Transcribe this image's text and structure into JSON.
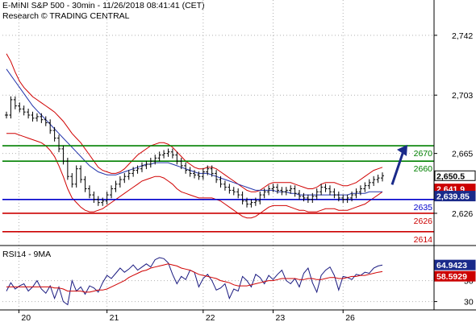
{
  "header": {
    "title": "E-MINI S&P 500 - 30min - 11/26/2018 08:41:41 (CET)",
    "subtitle": "Research © TRADING CENTRAL"
  },
  "rsi_panel": {
    "title": "RSI14 - 9MA"
  },
  "colors": {
    "price": "#000000",
    "bollinger": "#d00000",
    "moving_average": "#2233aa",
    "resistance": "#008000",
    "pivot": "#0000cc",
    "support": "#cc0000",
    "rsi": "#1a1a80",
    "rsi_ma": "#d00000",
    "last_price_box": "#ffffff",
    "lower_band_box": "#cc0000",
    "ma_box": "#1a2a8a",
    "arrow": "#1a2a8a"
  },
  "chart_data": [
    {
      "type": "line",
      "instrument": "E-MINI S&P 500",
      "timeframe": "30min",
      "x_tick_labels": [
        "20",
        "21",
        "22",
        "23",
        "26"
      ],
      "y_tick_labels": [
        "2,742",
        "2,703",
        "2,665",
        "2,626"
      ],
      "ylim": [
        2605,
        2765
      ],
      "grid": true,
      "price_series": [
        2690,
        2700,
        2696,
        2694,
        2692,
        2690,
        2688,
        2689,
        2687,
        2685,
        2680,
        2675,
        2668,
        2660,
        2650,
        2645,
        2655,
        2648,
        2642,
        2638,
        2635,
        2633,
        2634,
        2638,
        2642,
        2645,
        2648,
        2650,
        2652,
        2654,
        2655,
        2657,
        2658,
        2660,
        2662,
        2664,
        2665,
        2666,
        2664,
        2660,
        2657,
        2654,
        2652,
        2651,
        2650,
        2653,
        2655,
        2652,
        2648,
        2645,
        2643,
        2641,
        2640,
        2638,
        2634,
        2632,
        2633,
        2634,
        2638,
        2640,
        2642,
        2643,
        2641,
        2640,
        2641,
        2642,
        2639,
        2637,
        2636,
        2635,
        2637,
        2640,
        2643,
        2642,
        2640,
        2638,
        2636,
        2635,
        2636,
        2638,
        2640,
        2642,
        2644,
        2646,
        2648,
        2649,
        2650.5
      ],
      "series": [
        {
          "name": "Bollinger upper",
          "values": [
            2730,
            2725,
            2718,
            2712,
            2708,
            2705,
            2702,
            2700,
            2698,
            2696,
            2694,
            2692,
            2689,
            2686,
            2682,
            2678,
            2675,
            2672,
            2668,
            2664,
            2660,
            2656,
            2654,
            2653,
            2652,
            2652,
            2653,
            2655,
            2658,
            2661,
            2664,
            2666,
            2668,
            2670,
            2671,
            2672,
            2672,
            2671,
            2669,
            2666,
            2663,
            2660,
            2658,
            2656,
            2655,
            2655,
            2656,
            2656,
            2655,
            2653,
            2651,
            2649,
            2647,
            2645,
            2643,
            2641,
            2640,
            2640,
            2641,
            2643,
            2645,
            2646,
            2646,
            2646,
            2646,
            2646,
            2645,
            2644,
            2643,
            2642,
            2642,
            2643,
            2645,
            2646,
            2646,
            2646,
            2645,
            2644,
            2644,
            2645,
            2646,
            2648,
            2650,
            2652,
            2654,
            2655,
            2656
          ]
        },
        {
          "name": "Bollinger lower",
          "values": [
            2678,
            2678,
            2678,
            2677,
            2676,
            2675,
            2674,
            2673,
            2672,
            2670,
            2667,
            2663,
            2657,
            2650,
            2642,
            2636,
            2633,
            2630,
            2628,
            2627,
            2627,
            2628,
            2629,
            2631,
            2633,
            2635,
            2637,
            2639,
            2641,
            2643,
            2645,
            2647,
            2648,
            2649,
            2650,
            2650,
            2649,
            2647,
            2645,
            2642,
            2640,
            2639,
            2638,
            2637,
            2636,
            2636,
            2636,
            2636,
            2635,
            2634,
            2632,
            2630,
            2628,
            2626,
            2624,
            2623,
            2623,
            2624,
            2626,
            2628,
            2630,
            2631,
            2631,
            2631,
            2631,
            2630,
            2629,
            2628,
            2628,
            2627,
            2627,
            2627,
            2628,
            2629,
            2629,
            2629,
            2628,
            2628,
            2628,
            2629,
            2630,
            2631,
            2632,
            2634,
            2636,
            2638,
            2640
          ]
        },
        {
          "name": "Moving average",
          "values": [
            2720,
            2716,
            2712,
            2708,
            2704,
            2700,
            2696,
            2693,
            2690,
            2687,
            2684,
            2681,
            2678,
            2675,
            2672,
            2669,
            2666,
            2663,
            2660,
            2657,
            2655,
            2653,
            2652,
            2651,
            2651,
            2651,
            2652,
            2653,
            2654,
            2655,
            2656,
            2657,
            2658,
            2658,
            2659,
            2659,
            2659,
            2659,
            2658,
            2657,
            2656,
            2655,
            2654,
            2653,
            2652,
            2652,
            2652,
            2651,
            2650,
            2649,
            2648,
            2647,
            2646,
            2645,
            2644,
            2643,
            2642,
            2641,
            2641,
            2641,
            2641,
            2641,
            2640,
            2640,
            2640,
            2639,
            2639,
            2638,
            2638,
            2638,
            2638,
            2638,
            2638,
            2638,
            2638,
            2638,
            2638,
            2638,
            2638,
            2639,
            2639,
            2639,
            2639,
            2640,
            2640,
            2640,
            2640
          ]
        }
      ],
      "horizontal_levels": [
        {
          "value": 2670,
          "label": "2670",
          "kind": "resistance"
        },
        {
          "value": 2660,
          "label": "2660",
          "kind": "resistance"
        },
        {
          "value": 2635,
          "label": "2635",
          "kind": "pivot"
        },
        {
          "value": 2626,
          "label": "2626",
          "kind": "support"
        },
        {
          "value": 2614,
          "label": "2614",
          "kind": "support"
        }
      ],
      "price_boxes": [
        {
          "value": 2650.5,
          "label": "2,650.5",
          "kind": "last"
        },
        {
          "value": 2641.9,
          "label": "2,641.9",
          "kind": "lower"
        },
        {
          "value": 2639.85,
          "label": "2,639.85",
          "kind": "ma"
        }
      ],
      "arrow": {
        "from_value": 2652,
        "to_value": 2668,
        "direction": "up"
      }
    },
    {
      "type": "line",
      "title": "RSI14 - 9MA",
      "y_tick_labels": [
        "50",
        "30"
      ],
      "ylim": [
        22,
        82
      ],
      "grid": true,
      "series": [
        {
          "name": "RSI14",
          "values": [
            40,
            48,
            42,
            45,
            47,
            40,
            44,
            50,
            42,
            38,
            45,
            33,
            44,
            30,
            27,
            50,
            40,
            44,
            37,
            45,
            43,
            39,
            48,
            55,
            52,
            57,
            62,
            58,
            61,
            65,
            60,
            63,
            66,
            63,
            70,
            72,
            71,
            67,
            56,
            47,
            54,
            51,
            60,
            58,
            44,
            52,
            56,
            50,
            41,
            43,
            47,
            33,
            42,
            40,
            54,
            50,
            44,
            56,
            53,
            47,
            55,
            51,
            56,
            60,
            50,
            47,
            52,
            44,
            57,
            62,
            48,
            39,
            55,
            60,
            63,
            55,
            41,
            54,
            53,
            51,
            56,
            55,
            58,
            57,
            62,
            64,
            64.94
          ]
        },
        {
          "name": "9MA",
          "values": [
            44,
            44,
            44,
            44,
            44,
            44,
            44,
            44,
            44,
            44,
            44,
            43,
            43,
            42,
            40,
            40,
            40,
            40,
            39,
            39,
            40,
            41,
            41,
            42,
            44,
            46,
            48,
            50,
            53,
            55,
            57,
            59,
            60,
            62,
            63,
            64,
            65,
            66,
            65,
            64,
            62,
            61,
            60,
            58,
            56,
            55,
            54,
            53,
            52,
            50,
            49,
            48,
            46,
            45,
            45,
            45,
            46,
            47,
            48,
            49,
            50,
            50,
            51,
            52,
            52,
            52,
            52,
            51,
            51,
            52,
            52,
            51,
            51,
            52,
            53,
            53,
            52,
            52,
            53,
            54,
            54,
            55,
            55,
            56,
            57,
            58,
            58.59
          ]
        }
      ],
      "price_boxes": [
        {
          "value": 64.9423,
          "label": "64.9423",
          "kind": "rsi"
        },
        {
          "value": 58.5929,
          "label": "58.5929",
          "kind": "ma"
        }
      ]
    }
  ]
}
